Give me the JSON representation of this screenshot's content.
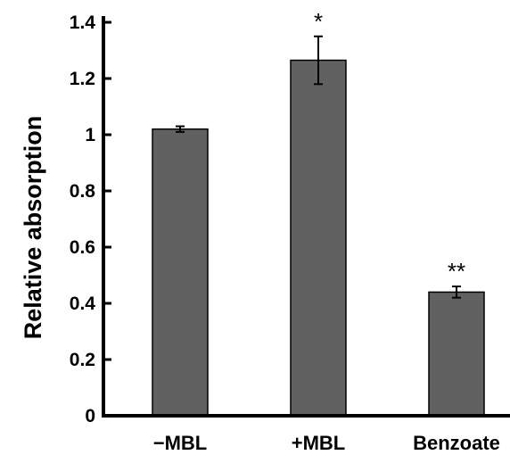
{
  "chart_data": {
    "type": "bar",
    "categories": [
      "−MBL",
      "+MBL",
      "Benzoate"
    ],
    "values": [
      1.02,
      1.265,
      0.44
    ],
    "errors": [
      0.01,
      0.085,
      0.02
    ],
    "significance": [
      "",
      "*",
      "**"
    ],
    "ylabel": "Relative absorption",
    "xlabel": "",
    "ylim": [
      0,
      1.4
    ],
    "yticks": [
      0,
      0.2,
      0.4,
      0.6,
      0.8,
      1,
      1.2,
      1.4
    ],
    "ytick_labels": [
      "0",
      "0.2",
      "0.4",
      "0.6",
      "0.8",
      "1",
      "1.2",
      "1.4"
    ],
    "grid": false,
    "colors": {
      "bar": "#616161",
      "bar_edge": "#000000",
      "axis": "#000000"
    }
  }
}
